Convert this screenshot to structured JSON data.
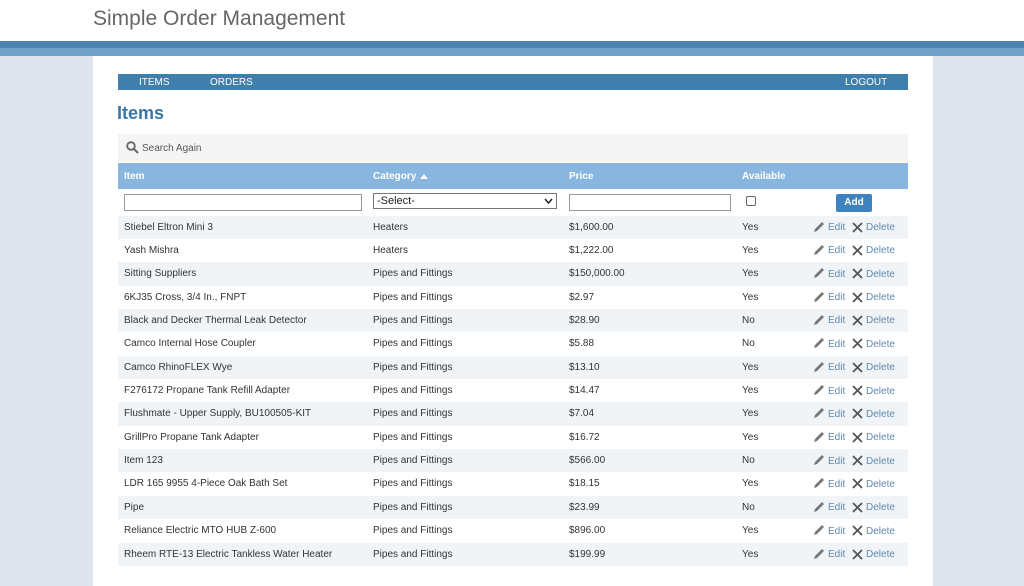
{
  "header": {
    "title": "Simple Order Management"
  },
  "nav": {
    "items": [
      "ITEMS",
      "ORDERS"
    ],
    "logout": "LOGOUT"
  },
  "page": {
    "heading": "Items",
    "search": "Search Again"
  },
  "table": {
    "columns": [
      "Item",
      "Category",
      "Price",
      "Available"
    ],
    "filter": {
      "select": "-Select-",
      "add": "Add"
    },
    "actions": [
      "Edit",
      "Delete"
    ],
    "rows": [
      [
        "Stiebel Eltron Mini 3",
        "Heaters",
        "$1,600.00",
        "Yes"
      ],
      [
        "Yash Mishra",
        "Heaters",
        "$1,222.00",
        "Yes"
      ],
      [
        "Sitting Suppliers",
        "Pipes and Fittings",
        "$150,000.00",
        "Yes"
      ],
      [
        "6KJ35 Cross, 3/4 In., FNPT",
        "Pipes and Fittings",
        "$2.97",
        "Yes"
      ],
      [
        "Black and Decker Thermal Leak Detector",
        "Pipes and Fittings",
        "$28.90",
        "No"
      ],
      [
        "Camco Internal Hose Coupler",
        "Pipes and Fittings",
        "$5.88",
        "No"
      ],
      [
        "Camco RhinoFLEX Wye",
        "Pipes and Fittings",
        "$13.10",
        "Yes"
      ],
      [
        "F276172 Propane Tank Refill Adapter",
        "Pipes and Fittings",
        "$14.47",
        "Yes"
      ],
      [
        "Flushmate - Upper Supply, BU100505-KIT",
        "Pipes and Fittings",
        "$7.04",
        "Yes"
      ],
      [
        "GrillPro Propane Tank Adapter",
        "Pipes and Fittings",
        "$16.72",
        "Yes"
      ],
      [
        "Item 123",
        "Pipes and Fittings",
        "$566.00",
        "No"
      ],
      [
        "LDR 165 9955 4-Piece Oak Bath Set",
        "Pipes and Fittings",
        "$18.15",
        "Yes"
      ],
      [
        "Pipe",
        "Pipes and Fittings",
        "$23.99",
        "No"
      ],
      [
        "Reliance Electric MTO HUB Z-600",
        "Pipes and Fittings",
        "$896.00",
        "Yes"
      ],
      [
        "Rheem RTE-13 Electric Tankless Water Heater",
        "Pipes and Fittings",
        "$199.99",
        "Yes"
      ]
    ]
  }
}
